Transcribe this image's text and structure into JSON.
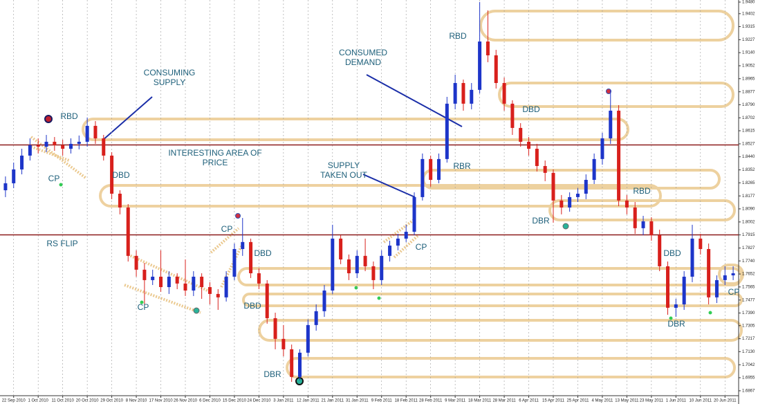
{
  "chart_data": {
    "type": "candlestick",
    "categories": [
      null,
      "22 Sep 2010",
      null,
      null,
      "1 Oct 2010",
      null,
      null,
      "11 Oct 2010",
      null,
      null,
      "20 Oct 2010",
      null,
      null,
      "29 Oct 2010",
      null,
      null,
      "8 Nov 2010",
      null,
      null,
      "17 Nov 2010",
      null,
      null,
      "26 Nov 2010",
      null,
      null,
      "6 Dec 2010",
      null,
      null,
      "15 Dec 2010",
      null,
      null,
      "24 Dec 2010",
      null,
      null,
      "3 Jan 2011",
      null,
      null,
      "12 Jan 2011",
      null,
      null,
      "21 Jan 2011",
      null,
      null,
      "31 Jan 2011",
      null,
      null,
      "9 Feb 2011",
      null,
      null,
      "18 Feb 2011",
      null,
      null,
      "28 Feb 2011",
      null,
      null,
      "9 Mar 2011",
      null,
      null,
      "18 Mar 2011",
      null,
      null,
      "28 Mar 2011",
      null,
      null,
      "6 Apr 2011",
      null,
      null,
      "15 Apr 2011",
      null,
      null,
      "25 Apr 2011",
      null,
      null,
      "4 May 2011",
      null,
      null,
      "13 May 2011",
      null,
      null,
      "23 May 2011",
      null,
      null,
      "1 Jun 2011",
      null,
      null,
      "10 Jun 2011",
      null,
      null,
      "20 Jun 2011",
      null
    ],
    "open": [
      1.8215,
      1.8262,
      1.8355,
      1.8448,
      1.8518,
      1.8508,
      1.8541,
      1.8518,
      1.8494,
      1.8527,
      1.8541,
      1.8648,
      1.8564,
      1.8448,
      1.8192,
      1.8099,
      1.7774,
      1.7681,
      1.7611,
      1.7634,
      1.7564,
      1.7634,
      1.7588,
      1.7541,
      1.7634,
      1.7564,
      1.7518,
      1.7495,
      1.7634,
      1.782,
      1.7867,
      1.7657,
      1.7588,
      1.7355,
      1.7216,
      1.7146,
      1.696,
      1.7123,
      1.7309,
      1.7402,
      1.7541,
      1.789,
      1.775,
      1.7657,
      1.7774,
      1.7704,
      1.7611,
      1.7774,
      1.7843,
      1.789,
      1.7936,
      1.8169,
      1.8425,
      1.8285,
      1.8425,
      1.8797,
      1.8936,
      1.8797,
      1.889,
      1.9215,
      1.9122,
      1.8936,
      1.8797,
      1.8634,
      1.8541,
      1.8494,
      1.8378,
      1.8332,
      1.8146,
      1.8099,
      1.8169,
      1.8192,
      1.8285,
      1.8425,
      1.8564,
      1.875,
      1.8146,
      1.8099,
      1.796,
      1.8006,
      1.7913,
      1.7704,
      1.7425,
      1.7448,
      1.7634,
      1.789,
      1.782,
      1.7495,
      1.7611,
      1.7643
    ],
    "high": [
      1.8308,
      1.8401,
      1.8494,
      1.8564,
      1.8564,
      1.8587,
      1.8573,
      1.8555,
      1.8564,
      1.8583,
      1.8704,
      1.868,
      1.8587,
      1.8471,
      1.8215,
      1.8122,
      1.7811,
      1.7727,
      1.7681,
      1.7811,
      1.7671,
      1.7657,
      1.775,
      1.7671,
      1.7657,
      1.7597,
      1.755,
      1.7671,
      1.7857,
      1.8029,
      1.789,
      1.769,
      1.7611,
      1.7392,
      1.7309,
      1.7178,
      1.7146,
      1.7346,
      1.7448,
      1.7578,
      1.7983,
      1.7913,
      1.7783,
      1.7811,
      1.789,
      1.7736,
      1.7811,
      1.7876,
      1.7922,
      1.7983,
      1.8201,
      1.8462,
      1.8448,
      1.8462,
      1.8843,
      1.8992,
      1.8959,
      1.8936,
      1.948,
      1.9424,
      1.9159,
      1.8973,
      1.882,
      1.8666,
      1.8573,
      1.8527,
      1.8415,
      1.8355,
      1.8183,
      1.8201,
      1.8229,
      1.8322,
      1.8462,
      1.8601,
      1.889,
      1.8787,
      1.8183,
      1.8136,
      1.8043,
      1.8034,
      1.795,
      1.7736,
      1.7485,
      1.7671,
      1.7983,
      1.7922,
      1.7857,
      1.7643,
      1.7704,
      1.7704
    ],
    "low": [
      1.8169,
      1.8229,
      1.8322,
      1.8415,
      1.8462,
      1.8471,
      1.848,
      1.8448,
      1.8462,
      1.849,
      1.8508,
      1.8527,
      1.8415,
      1.8155,
      1.8053,
      1.7736,
      1.7634,
      1.7448,
      1.7578,
      1.7532,
      1.7518,
      1.755,
      1.7504,
      1.7504,
      1.7485,
      1.7448,
      1.7411,
      1.7467,
      1.7611,
      1.7774,
      1.7625,
      1.755,
      1.7318,
      1.7146,
      1.7099,
      1.6927,
      1.6937,
      1.7099,
      1.7271,
      1.7364,
      1.7518,
      1.7718,
      1.7611,
      1.7625,
      1.7671,
      1.755,
      1.7578,
      1.7736,
      1.7811,
      1.7867,
      1.7913,
      1.8146,
      1.8239,
      1.8262,
      1.8401,
      1.8759,
      1.875,
      1.8759,
      1.8866,
      1.9076,
      1.8899,
      1.875,
      1.8587,
      1.8508,
      1.8448,
      1.8341,
      1.8276,
      1.7997,
      1.8053,
      1.8071,
      1.8136,
      1.8155,
      1.8257,
      1.8387,
      1.8527,
      1.8108,
      1.8053,
      1.7922,
      1.7913,
      1.7876,
      1.7671,
      1.7378,
      1.7364,
      1.7411,
      1.7597,
      1.7783,
      1.7448,
      1.7457,
      1.7578,
      1.7611
    ],
    "close": [
      1.8262,
      1.8355,
      1.8448,
      1.8518,
      1.8508,
      1.8541,
      1.8518,
      1.8494,
      1.8527,
      1.8541,
      1.8648,
      1.8564,
      1.8448,
      1.8192,
      1.8099,
      1.7774,
      1.7681,
      1.7611,
      1.7634,
      1.7564,
      1.7634,
      1.7588,
      1.7541,
      1.7634,
      1.7564,
      1.7518,
      1.7495,
      1.7634,
      1.782,
      1.7867,
      1.7657,
      1.7588,
      1.7355,
      1.7216,
      1.7146,
      1.696,
      1.7123,
      1.7309,
      1.7402,
      1.7541,
      1.789,
      1.775,
      1.7657,
      1.7774,
      1.7704,
      1.7611,
      1.7774,
      1.7843,
      1.789,
      1.7936,
      1.8169,
      1.8425,
      1.8285,
      1.8425,
      1.8797,
      1.8936,
      1.8797,
      1.889,
      1.9215,
      1.9122,
      1.8936,
      1.8797,
      1.8634,
      1.8541,
      1.8494,
      1.8378,
      1.8332,
      1.8146,
      1.8099,
      1.8169,
      1.8192,
      1.8285,
      1.8425,
      1.8564,
      1.875,
      1.8146,
      1.8099,
      1.796,
      1.8006,
      1.7913,
      1.7704,
      1.7425,
      1.7448,
      1.7634,
      1.789,
      1.782,
      1.7495,
      1.7611,
      1.7643,
      1.7657
    ],
    "up_color": "#1d35c9",
    "down_color": "#d8201c",
    "ylim": [
      1.6834,
      1.9494
    ],
    "yticks": [
      {
        "value": 1.948,
        "label": "1.9480"
      },
      1.9402,
      1.9315,
      1.9227,
      {
        "value": 1.914,
        "label": "1.9140"
      },
      1.9052,
      1.8965,
      1.8877,
      {
        "value": 1.879,
        "label": "1.8790"
      },
      1.8702,
      1.8615,
      1.8527,
      {
        "value": 1.844,
        "label": "1.8440"
      },
      1.8352,
      1.8265,
      1.8177,
      {
        "value": 1.809,
        "label": "1.8090"
      },
      1.8002,
      1.7915,
      1.7827,
      {
        "value": 1.774,
        "label": "1.7740"
      },
      1.7652,
      1.7565,
      1.7477,
      {
        "value": 1.739,
        "label": "1.7390"
      },
      1.7305,
      1.7217,
      {
        "value": 1.713,
        "label": "1.7130"
      },
      1.7042,
      1.6955,
      1.6867
    ],
    "levels": [
      1.852,
      1.7915
    ],
    "level_color": "#8b1a1a",
    "annotations": [
      "RBD",
      "CP",
      "CONSUMING SUPPLY",
      "INTERESTING AREA OF PRICE",
      "DBD",
      "RS FLIP",
      "CP",
      "CP",
      "DBD",
      "DBD",
      "DBR",
      "SUPPLY TAKEN OUT",
      "CP",
      "RBR",
      "CONSUMED DEMAND",
      "RBD",
      "DBD",
      "DBR",
      "RBD",
      "DBD",
      "DBR",
      "CP"
    ]
  }
}
